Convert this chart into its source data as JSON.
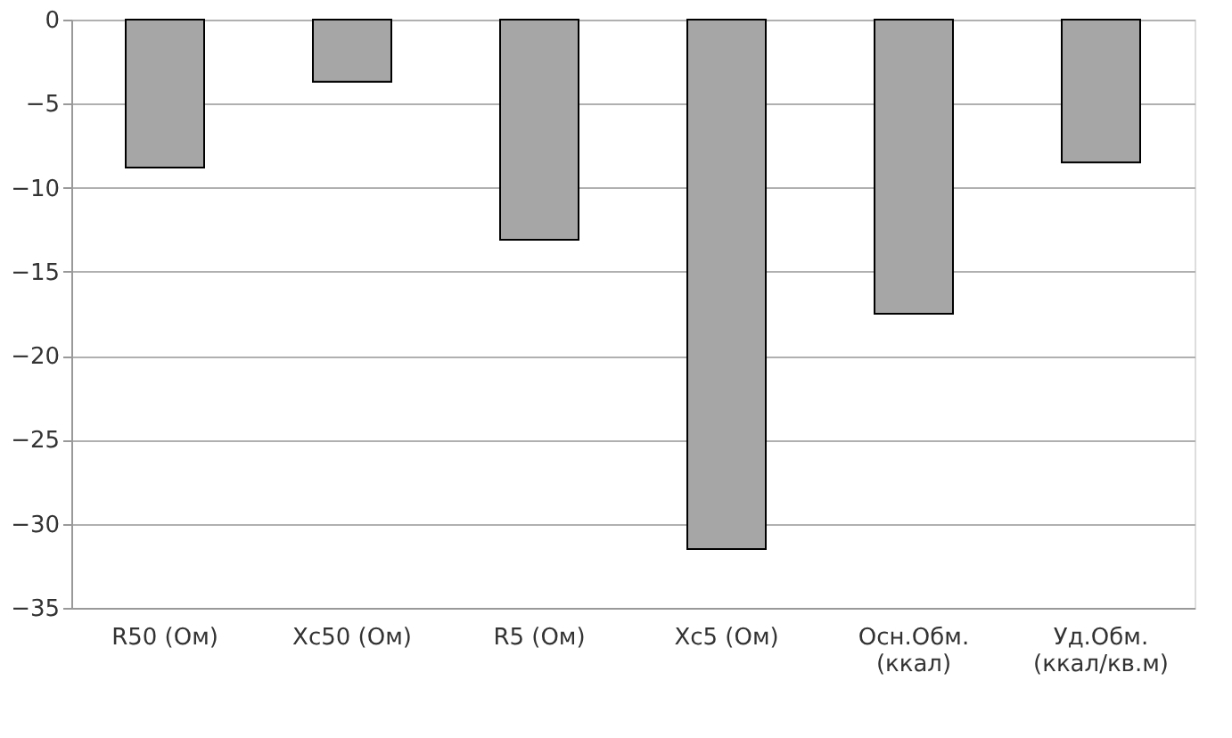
{
  "chart_data": {
    "type": "bar",
    "categories": [
      "R50 (Ом)",
      "Xc50 (Ом)",
      "R5 (Ом)",
      "Xc5 (Ом)",
      "Осн.Обм. (ккал)",
      "Уд.Обм. (ккал/кв.м)"
    ],
    "values": [
      -8.8,
      -3.7,
      -13.1,
      -31.5,
      -17.5,
      -8.5
    ],
    "color": "#a6a6a6",
    "ylim": [
      -35,
      0
    ],
    "yticks": [
      0,
      -5,
      -10,
      -15,
      -20,
      -25,
      -30,
      -35
    ],
    "grid": "y"
  }
}
